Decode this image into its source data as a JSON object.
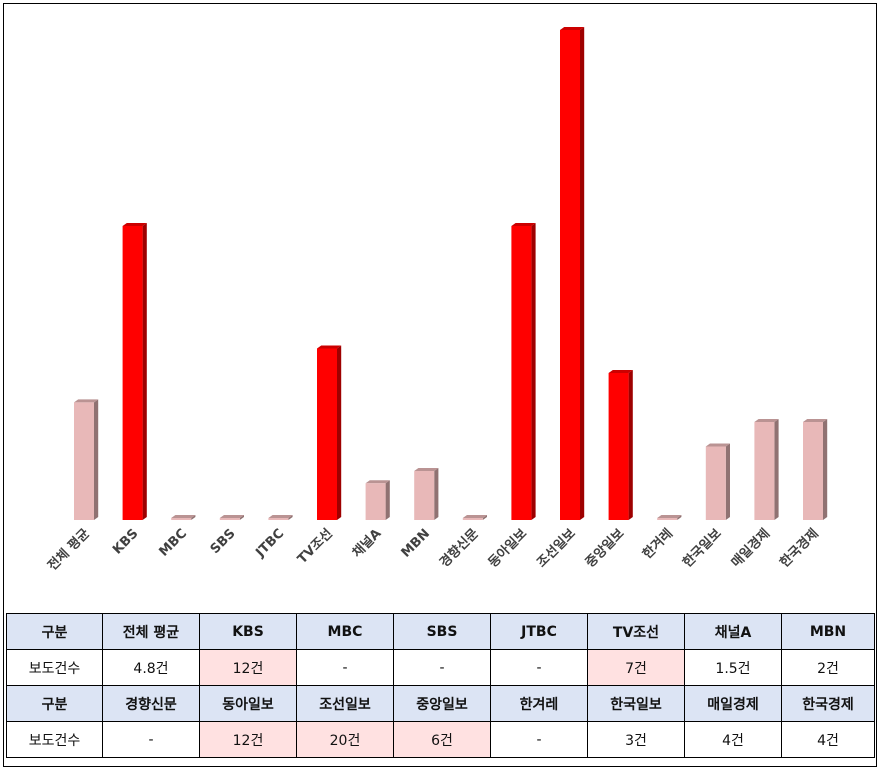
{
  "chart_data": {
    "type": "bar",
    "categories": [
      "전체 평균",
      "KBS",
      "MBC",
      "SBS",
      "JTBC",
      "TV조선",
      "채널A",
      "MBN",
      "경향신문",
      "동아일보",
      "조선일보",
      "중앙일보",
      "한겨레",
      "한국일보",
      "매일경제",
      "한국경제"
    ],
    "values": [
      4.8,
      12,
      0,
      0,
      0,
      7,
      1.5,
      2,
      0,
      12,
      20,
      6,
      0,
      3,
      4,
      4
    ],
    "bar_colors": [
      "#e8b8b8",
      "#ff0000",
      "#e8b8b8",
      "#e8b8b8",
      "#e8b8b8",
      "#ff0000",
      "#e8b8b8",
      "#e8b8b8",
      "#e8b8b8",
      "#ff0000",
      "#ff0000",
      "#ff0000",
      "#e8b8b8",
      "#e8b8b8",
      "#e8b8b8",
      "#e8b8b8"
    ],
    "ylim": [
      0,
      20
    ],
    "grid": false,
    "title": "",
    "xlabel": "",
    "ylabel": ""
  },
  "table": {
    "rows": [
      {
        "kind": "head",
        "cells": [
          "구분",
          "전체 평균",
          "KBS",
          "MBC",
          "SBS",
          "JTBC",
          "TV조선",
          "채널A",
          "MBN"
        ]
      },
      {
        "kind": "vals",
        "cells": [
          "보도건수",
          "4.8건",
          "12건",
          "-",
          "-",
          "-",
          "7건",
          "1.5건",
          "2건"
        ],
        "highlight": [
          2,
          6
        ]
      },
      {
        "kind": "head",
        "cells": [
          "구분",
          "경향신문",
          "동아일보",
          "조선일보",
          "중앙일보",
          "한겨레",
          "한국일보",
          "매일경제",
          "한국경제"
        ]
      },
      {
        "kind": "vals",
        "cells": [
          "보도건수",
          "-",
          "12건",
          "20건",
          "6건",
          "-",
          "3건",
          "4건",
          "4건"
        ],
        "highlight": [
          2,
          3,
          4
        ]
      }
    ]
  },
  "colors": {
    "highlight_bar": "#ff0000",
    "normal_bar": "#e8b8b8",
    "table_header_bg": "#dce4f4",
    "table_highlight_bg": "#ffe1e1"
  }
}
